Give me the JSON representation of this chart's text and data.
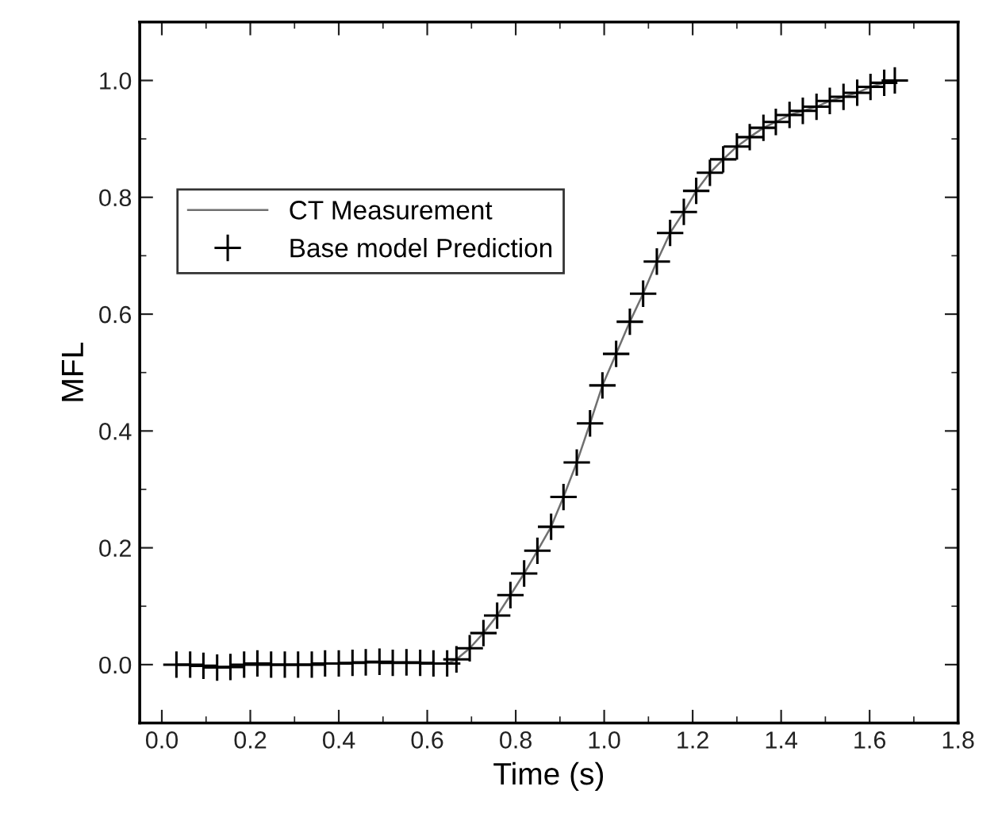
{
  "chart_data": {
    "type": "line",
    "xlabel": "Time (s)",
    "ylabel": "MFL",
    "xlim": [
      -0.05,
      1.8
    ],
    "xticks": [
      {
        "value": 0,
        "label": "0.0"
      },
      0.2,
      0.4,
      0.6,
      0.8,
      {
        "value": 1,
        "label": "1.0"
      },
      1.2,
      1.4,
      1.6,
      1.8
    ],
    "ylim": [
      -0.1,
      1.1
    ],
    "yticks": [
      {
        "value": 0,
        "label": "0.0"
      },
      0.2,
      0.4,
      0.6,
      0.8,
      {
        "value": 1,
        "label": "1.0"
      }
    ],
    "grid": false,
    "legend": "top left",
    "x": [
      0.033,
      0.064,
      0.094,
      0.125,
      0.155,
      0.186,
      0.216,
      0.247,
      0.278,
      0.308,
      0.339,
      0.369,
      0.4,
      0.431,
      0.461,
      0.492,
      0.522,
      0.553,
      0.584,
      0.614,
      0.645,
      0.666,
      0.696,
      0.727,
      0.758,
      0.788,
      0.819,
      0.849,
      0.88,
      0.908,
      0.938,
      0.968,
      0.996,
      1.027,
      1.058,
      1.088,
      1.119,
      1.149,
      1.18,
      1.208,
      1.239,
      1.269,
      1.3,
      1.329,
      1.36,
      1.388,
      1.419,
      1.449,
      1.48,
      1.51,
      1.541,
      1.572,
      1.602,
      1.633,
      1.657
    ],
    "series": [
      {
        "name": "CT Measurement",
        "marker": "none",
        "color": "#707070",
        "values": [
          0,
          0,
          -0.002,
          -0.005,
          -0.004,
          0,
          0.002,
          0,
          0,
          0,
          0,
          0.002,
          0.002,
          0.003,
          0.004,
          0.005,
          0.003,
          0.004,
          0.003,
          0.002,
          0.002,
          0.009,
          0.028,
          0.054,
          0.084,
          0.119,
          0.156,
          0.195,
          0.236,
          0.287,
          0.346,
          0.413,
          0.478,
          0.532,
          0.587,
          0.635,
          0.69,
          0.739,
          0.775,
          0.811,
          0.842,
          0.865,
          0.887,
          0.903,
          0.919,
          0.929,
          0.941,
          0.948,
          0.955,
          0.965,
          0.972,
          0.979,
          0.989,
          0.996,
          1.0
        ]
      },
      {
        "name": "Base model Prediction",
        "type": "scatter",
        "marker": "cross",
        "color": "#000000",
        "values": [
          0,
          0,
          -0.002,
          -0.005,
          -0.004,
          0,
          0.002,
          0,
          0,
          0,
          0,
          0.002,
          0.002,
          0.003,
          0.004,
          0.005,
          0.003,
          0.004,
          0.003,
          0.002,
          0.002,
          0.009,
          0.028,
          0.054,
          0.084,
          0.119,
          0.156,
          0.195,
          0.236,
          0.287,
          0.346,
          0.413,
          0.478,
          0.532,
          0.587,
          0.635,
          0.69,
          0.739,
          0.775,
          0.811,
          0.842,
          0.865,
          0.887,
          0.903,
          0.919,
          0.929,
          0.941,
          0.948,
          0.955,
          0.965,
          0.972,
          0.979,
          0.989,
          0.996,
          1.0
        ]
      }
    ]
  }
}
